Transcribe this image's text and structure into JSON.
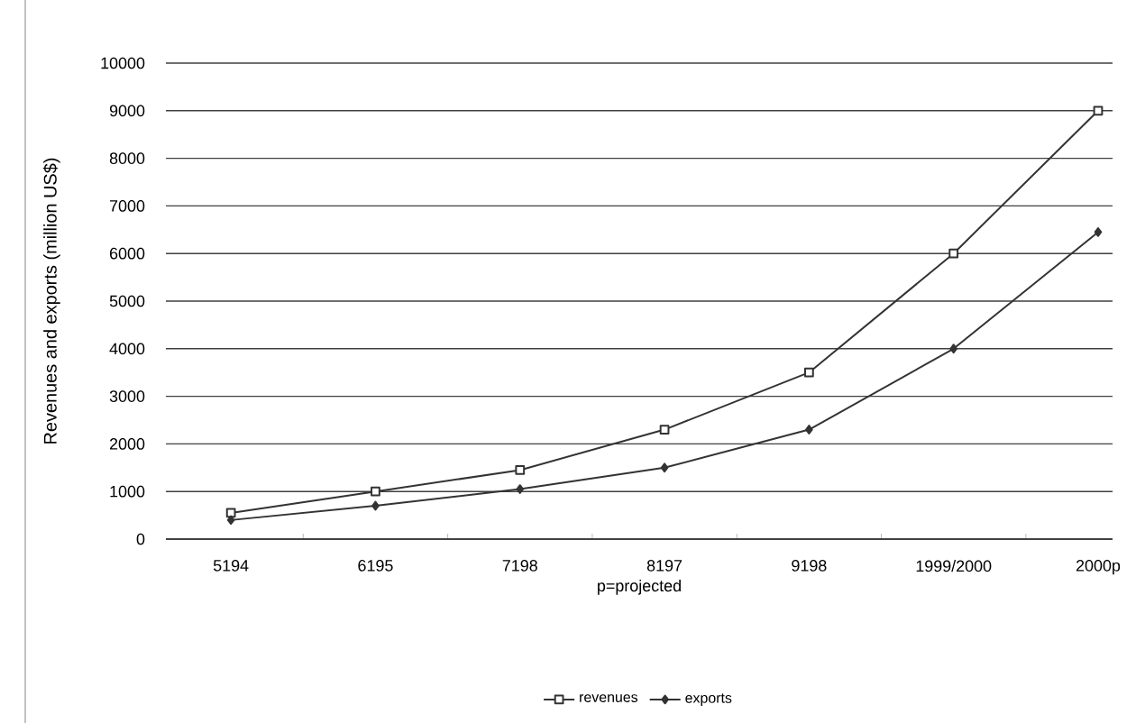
{
  "chart_data": {
    "type": "line",
    "categories": [
      "5194",
      "6195",
      "7198",
      "8197",
      "9198",
      "1999/2000",
      "2000p"
    ],
    "xlabel": "p=projected",
    "ylabel": "Revenues and exports (million US$)",
    "series": [
      {
        "name": "revenues",
        "color": "#333333",
        "marker": "square",
        "values": [
          550,
          1000,
          1450,
          2300,
          3500,
          6000,
          9000
        ]
      },
      {
        "name": "exports",
        "color": "#333333",
        "marker": "diamond",
        "values": [
          400,
          700,
          1050,
          1500,
          2300,
          4000,
          6450
        ]
      }
    ],
    "ylim": [
      0,
      10000
    ],
    "yticks": [
      0,
      1000,
      2000,
      3000,
      4000,
      5000,
      6000,
      7000,
      8000,
      9000,
      10000
    ],
    "grid": "y",
    "legend": "bottom",
    "line_style": "solid"
  }
}
